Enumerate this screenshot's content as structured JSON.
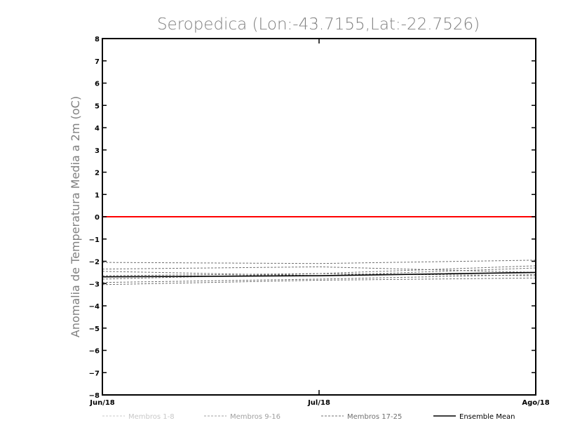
{
  "chart_data": {
    "type": "line",
    "title": "Seropedica (Lon:-43.7155,Lat:-22.7526)",
    "xlabel": "",
    "ylabel": "Anomalia de Temperatura Media a 2m (oC)",
    "x": [
      "Jun/18",
      "Jul/18",
      "Ago/18"
    ],
    "ylim": [
      -8,
      8
    ],
    "yticks": [
      -8,
      -7,
      -6,
      -5,
      -4,
      -3,
      -2,
      -1,
      0,
      1,
      2,
      3,
      4,
      5,
      6,
      7,
      8
    ],
    "grid": false,
    "legend_position": "bottom",
    "reference_line": {
      "value": 0,
      "color": "#ff0000"
    },
    "series": [
      {
        "name": "Membros 1-8",
        "style": "dashed",
        "color": "#c8c8c8",
        "members": []
      },
      {
        "name": "Membros 9-16",
        "style": "dashed",
        "color": "#a0a0a0",
        "members": []
      },
      {
        "name": "Membros 17-25",
        "style": "dashed",
        "color": "#707070",
        "members": [
          [
            -2.05,
            -2.1,
            -1.95
          ],
          [
            -2.35,
            -2.25,
            -2.5
          ],
          [
            -2.45,
            -2.65,
            -2.3
          ],
          [
            -2.65,
            -2.55,
            -2.2
          ],
          [
            -2.8,
            -2.55,
            -2.65
          ],
          [
            -2.95,
            -2.8,
            -2.6
          ],
          [
            -3.05,
            -2.85,
            -2.75
          ]
        ]
      },
      {
        "name": "Ensemble Mean",
        "style": "solid",
        "color": "#000000",
        "values": [
          -2.7,
          -2.65,
          -2.5
        ]
      }
    ]
  }
}
